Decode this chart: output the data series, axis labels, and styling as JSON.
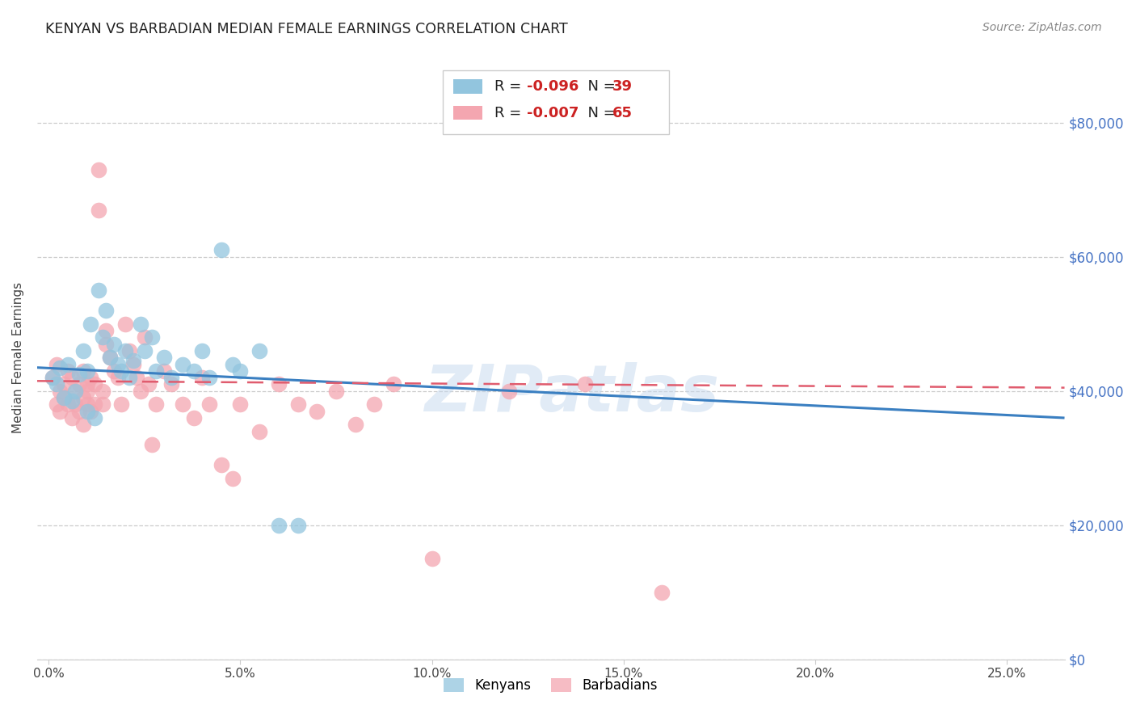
{
  "title": "KENYAN VS BARBADIAN MEDIAN FEMALE EARNINGS CORRELATION CHART",
  "source": "Source: ZipAtlas.com",
  "ylabel": "Median Female Earnings",
  "xlabel_ticks": [
    "0.0%",
    "5.0%",
    "10.0%",
    "15.0%",
    "20.0%",
    "25.0%"
  ],
  "xlabel_vals": [
    0.0,
    0.05,
    0.1,
    0.15,
    0.2,
    0.25
  ],
  "ylabel_vals": [
    0,
    20000,
    40000,
    60000,
    80000
  ],
  "ylim": [
    0,
    90000
  ],
  "xlim": [
    -0.003,
    0.265
  ],
  "kenya_R": "-0.096",
  "kenya_N": "39",
  "barbados_R": "-0.007",
  "barbados_N": "65",
  "kenya_color": "#92c5de",
  "barbados_color": "#f4a6b0",
  "kenya_line_color": "#3a7fc1",
  "barbados_line_color": "#e05c6e",
  "watermark": "ZIPatlas",
  "kenya_scatter_x": [
    0.001,
    0.002,
    0.003,
    0.004,
    0.005,
    0.006,
    0.007,
    0.008,
    0.009,
    0.01,
    0.01,
    0.011,
    0.012,
    0.013,
    0.014,
    0.015,
    0.016,
    0.017,
    0.018,
    0.019,
    0.02,
    0.021,
    0.022,
    0.024,
    0.025,
    0.027,
    0.028,
    0.03,
    0.032,
    0.035,
    0.038,
    0.04,
    0.042,
    0.045,
    0.048,
    0.05,
    0.055,
    0.06,
    0.065
  ],
  "kenya_scatter_y": [
    42000,
    41000,
    43500,
    39000,
    44000,
    38500,
    40000,
    42500,
    46000,
    37000,
    43000,
    50000,
    36000,
    55000,
    48000,
    52000,
    45000,
    47000,
    44000,
    43000,
    46000,
    42000,
    44500,
    50000,
    46000,
    48000,
    43000,
    45000,
    42000,
    44000,
    43000,
    46000,
    42000,
    61000,
    44000,
    43000,
    46000,
    20000,
    20000
  ],
  "barbados_scatter_x": [
    0.001,
    0.002,
    0.002,
    0.003,
    0.003,
    0.004,
    0.004,
    0.005,
    0.005,
    0.006,
    0.006,
    0.007,
    0.007,
    0.008,
    0.008,
    0.009,
    0.009,
    0.009,
    0.01,
    0.01,
    0.01,
    0.011,
    0.011,
    0.012,
    0.012,
    0.013,
    0.013,
    0.014,
    0.014,
    0.015,
    0.015,
    0.016,
    0.017,
    0.018,
    0.019,
    0.02,
    0.021,
    0.022,
    0.023,
    0.024,
    0.025,
    0.026,
    0.027,
    0.028,
    0.03,
    0.032,
    0.035,
    0.038,
    0.04,
    0.042,
    0.045,
    0.048,
    0.05,
    0.055,
    0.06,
    0.065,
    0.07,
    0.075,
    0.08,
    0.085,
    0.09,
    0.1,
    0.12,
    0.14,
    0.16
  ],
  "barbados_scatter_y": [
    42000,
    44000,
    38000,
    40000,
    37000,
    41000,
    39000,
    43000,
    38000,
    42000,
    36000,
    40000,
    38000,
    41000,
    37000,
    43000,
    39000,
    35000,
    41000,
    38000,
    40000,
    42000,
    37000,
    41000,
    38000,
    73000,
    67000,
    40000,
    38000,
    49000,
    47000,
    45000,
    43000,
    42000,
    38000,
    50000,
    46000,
    44000,
    42000,
    40000,
    48000,
    41000,
    32000,
    38000,
    43000,
    41000,
    38000,
    36000,
    42000,
    38000,
    29000,
    27000,
    38000,
    34000,
    41000,
    38000,
    37000,
    40000,
    35000,
    38000,
    41000,
    15000,
    40000,
    41000,
    10000
  ],
  "kenya_trend_x": [
    -0.003,
    0.265
  ],
  "kenya_trend_y": [
    43500,
    36000
  ],
  "barbados_trend_x": [
    -0.003,
    0.265
  ],
  "barbados_trend_y": [
    41500,
    40500
  ]
}
